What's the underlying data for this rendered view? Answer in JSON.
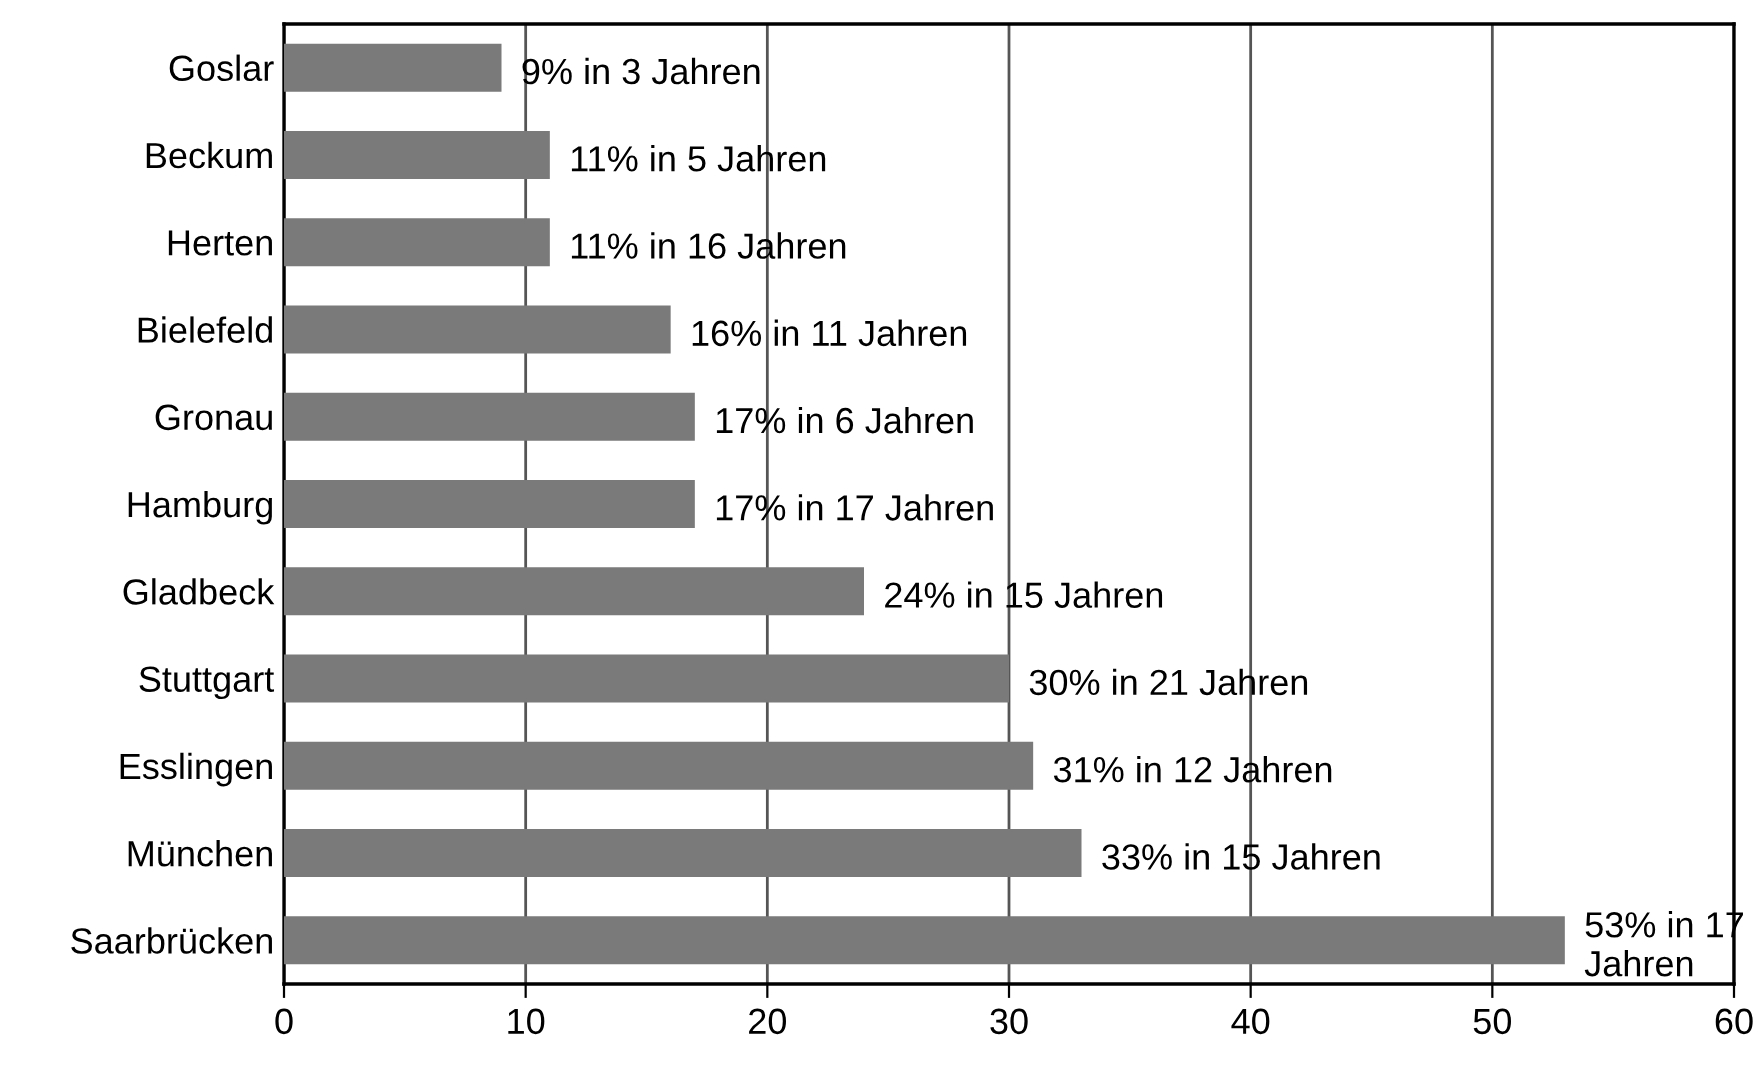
{
  "chart_data": {
    "type": "bar",
    "orientation": "horizontal",
    "categories": [
      "Goslar",
      "Beckum",
      "Herten",
      "Bielefeld",
      "Gronau",
      "Hamburg",
      "Gladbeck",
      "Stuttgart",
      "Esslingen",
      "München",
      "Saarbrücken"
    ],
    "values": [
      9,
      11,
      11,
      16,
      17,
      17,
      24,
      30,
      31,
      33,
      53
    ],
    "value_labels": [
      "9% in 3 Jahren",
      "11% in 5 Jahren",
      "11% in 16 Jahren",
      "16% in 11 Jahren",
      "17% in 6 Jahren",
      "17% in 17 Jahren",
      "24% in 15 Jahren",
      "30% in 21 Jahren",
      "31% in 12 Jahren",
      "33% in 15 Jahren",
      "53% in 17 Jahren"
    ],
    "color": "#7a7a7a",
    "xlim": [
      0,
      60
    ],
    "xticks": [
      0,
      10,
      20,
      30,
      40,
      50,
      60
    ],
    "grid": "x"
  }
}
